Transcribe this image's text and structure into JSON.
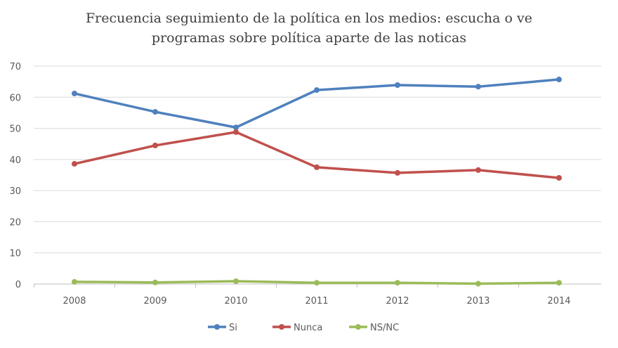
{
  "chart_data": {
    "type": "line",
    "title_lines": [
      "Frecuencia seguimiento de la política en los medios: escucha o ve",
      "programas sobre política aparte de las noticas"
    ],
    "x": [
      "2008",
      "2009",
      "2010",
      "2011",
      "2012",
      "2013",
      "2014"
    ],
    "ylim": [
      0,
      70
    ],
    "yticks": [
      "0",
      "10",
      "20",
      "30",
      "40",
      "50",
      "60",
      "70"
    ],
    "grid": true,
    "legend_position": "bottom",
    "series": [
      {
        "name": "Si",
        "color": "#4f81bd",
        "values": [
          61.2,
          55.3,
          50.3,
          62.3,
          63.9,
          63.4,
          65.7
        ]
      },
      {
        "name": "Nunca",
        "color": "#c0504d",
        "values": [
          38.6,
          44.5,
          48.8,
          37.5,
          35.7,
          36.6,
          34.1
        ]
      },
      {
        "name": "NS/NC",
        "color": "#9bbb59",
        "values": [
          0.7,
          0.5,
          0.9,
          0.4,
          0.4,
          0.1,
          0.4
        ]
      }
    ]
  }
}
